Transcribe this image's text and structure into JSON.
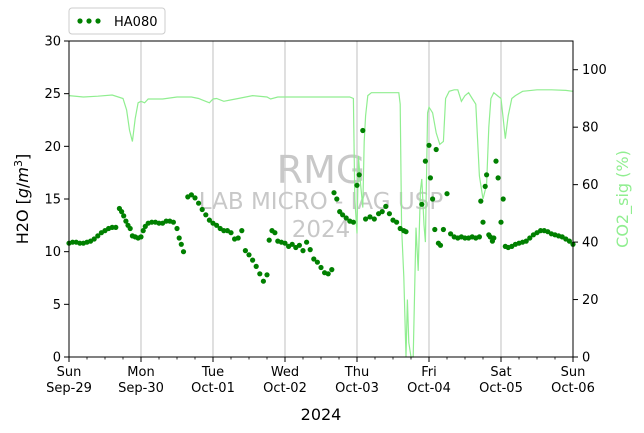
{
  "chart_data": {
    "type": "scatter",
    "xlabel": "2024",
    "ylabel_left": "H2O [g/m³]",
    "ylabel_right": "CO2_sig (%)",
    "ylim_left": [
      0,
      30
    ],
    "ylim_right": [
      0,
      110
    ],
    "yticks_left": [
      "0",
      "5",
      "10",
      "15",
      "20",
      "25",
      "30"
    ],
    "yticks_right": [
      "0",
      "20",
      "40",
      "60",
      "80",
      "100"
    ],
    "xlim_days": [
      0,
      7
    ],
    "x_ticks": [
      {
        "day": 0,
        "weekday": "Sun",
        "date": "Sep-29"
      },
      {
        "day": 1,
        "weekday": "Mon",
        "date": "Sep-30"
      },
      {
        "day": 2,
        "weekday": "Tue",
        "date": "Oct-01"
      },
      {
        "day": 3,
        "weekday": "Wed",
        "date": "Oct-02"
      },
      {
        "day": 4,
        "weekday": "Thu",
        "date": "Oct-03"
      },
      {
        "day": 5,
        "weekday": "Fri",
        "date": "Oct-04"
      },
      {
        "day": 6,
        "weekday": "Sat",
        "date": "Oct-05"
      },
      {
        "day": 7,
        "weekday": "Sun",
        "date": "Oct-06"
      }
    ],
    "grid": "vertical",
    "legend_position": "top-left",
    "watermark": [
      "RMG",
      "LAB MICRO - IAG USP",
      "2024"
    ],
    "series": [
      {
        "name": "HA080",
        "axis": "left",
        "style": "points",
        "color": "#008000",
        "points": [
          [
            0.0,
            10.8
          ],
          [
            0.05,
            10.9
          ],
          [
            0.1,
            10.9
          ],
          [
            0.15,
            10.8
          ],
          [
            0.2,
            10.8
          ],
          [
            0.25,
            10.9
          ],
          [
            0.3,
            11.0
          ],
          [
            0.35,
            11.2
          ],
          [
            0.4,
            11.5
          ],
          [
            0.45,
            11.8
          ],
          [
            0.5,
            12.0
          ],
          [
            0.55,
            12.2
          ],
          [
            0.6,
            12.3
          ],
          [
            0.65,
            12.3
          ],
          [
            0.7,
            14.1
          ],
          [
            0.73,
            13.8
          ],
          [
            0.76,
            13.4
          ],
          [
            0.79,
            12.9
          ],
          [
            0.82,
            12.5
          ],
          [
            0.85,
            12.2
          ],
          [
            0.88,
            11.5
          ],
          [
            0.92,
            11.4
          ],
          [
            0.96,
            11.3
          ],
          [
            1.0,
            11.4
          ],
          [
            1.03,
            12.0
          ],
          [
            1.06,
            12.4
          ],
          [
            1.1,
            12.7
          ],
          [
            1.15,
            12.8
          ],
          [
            1.2,
            12.8
          ],
          [
            1.25,
            12.7
          ],
          [
            1.3,
            12.7
          ],
          [
            1.35,
            12.9
          ],
          [
            1.4,
            12.9
          ],
          [
            1.45,
            12.8
          ],
          [
            1.5,
            12.2
          ],
          [
            1.53,
            11.3
          ],
          [
            1.56,
            10.7
          ],
          [
            1.59,
            10.0
          ],
          [
            1.65,
            15.2
          ],
          [
            1.7,
            15.4
          ],
          [
            1.75,
            15.1
          ],
          [
            1.8,
            14.6
          ],
          [
            1.85,
            14.0
          ],
          [
            1.9,
            13.5
          ],
          [
            1.95,
            13.0
          ],
          [
            2.0,
            12.7
          ],
          [
            2.05,
            12.5
          ],
          [
            2.1,
            12.2
          ],
          [
            2.15,
            12.0
          ],
          [
            2.2,
            12.0
          ],
          [
            2.25,
            11.8
          ],
          [
            2.3,
            11.2
          ],
          [
            2.35,
            11.3
          ],
          [
            2.4,
            12.0
          ],
          [
            2.45,
            10.1
          ],
          [
            2.5,
            9.7
          ],
          [
            2.55,
            9.2
          ],
          [
            2.6,
            8.6
          ],
          [
            2.65,
            7.9
          ],
          [
            2.7,
            7.2
          ],
          [
            2.75,
            7.8
          ],
          [
            2.78,
            11.1
          ],
          [
            2.82,
            12.0
          ],
          [
            2.86,
            11.8
          ],
          [
            2.9,
            11.0
          ],
          [
            2.95,
            10.9
          ],
          [
            3.0,
            10.8
          ],
          [
            3.05,
            10.5
          ],
          [
            3.1,
            10.7
          ],
          [
            3.15,
            10.4
          ],
          [
            3.2,
            10.6
          ],
          [
            3.25,
            10.1
          ],
          [
            3.3,
            10.9
          ],
          [
            3.35,
            10.2
          ],
          [
            3.4,
            9.3
          ],
          [
            3.45,
            9.0
          ],
          [
            3.5,
            8.5
          ],
          [
            3.55,
            8.0
          ],
          [
            3.6,
            7.9
          ],
          [
            3.65,
            8.3
          ],
          [
            3.68,
            15.6
          ],
          [
            3.72,
            15.0
          ],
          [
            3.76,
            13.8
          ],
          [
            3.8,
            13.5
          ],
          [
            3.85,
            13.2
          ],
          [
            3.9,
            12.9
          ],
          [
            3.95,
            12.8
          ],
          [
            4.0,
            16.3
          ],
          [
            4.03,
            17.3
          ],
          [
            4.08,
            21.5
          ],
          [
            4.12,
            13.1
          ],
          [
            4.18,
            13.3
          ],
          [
            4.24,
            13.1
          ],
          [
            4.3,
            13.6
          ],
          [
            4.35,
            13.8
          ],
          [
            4.4,
            14.3
          ],
          [
            4.45,
            13.6
          ],
          [
            4.5,
            13.0
          ],
          [
            4.55,
            12.8
          ],
          [
            4.6,
            12.2
          ],
          [
            4.65,
            12.0
          ],
          [
            4.68,
            11.9
          ],
          [
            4.9,
            14.5
          ],
          [
            4.95,
            18.6
          ],
          [
            5.0,
            20.1
          ],
          [
            5.02,
            17.0
          ],
          [
            5.05,
            15.0
          ],
          [
            5.08,
            12.1
          ],
          [
            5.1,
            19.7
          ],
          [
            5.13,
            10.8
          ],
          [
            5.16,
            10.6
          ],
          [
            5.2,
            12.1
          ],
          [
            5.25,
            15.5
          ],
          [
            5.3,
            11.7
          ],
          [
            5.35,
            11.4
          ],
          [
            5.4,
            11.3
          ],
          [
            5.45,
            11.4
          ],
          [
            5.5,
            11.3
          ],
          [
            5.55,
            11.3
          ],
          [
            5.6,
            11.4
          ],
          [
            5.65,
            11.3
          ],
          [
            5.7,
            11.4
          ],
          [
            5.72,
            14.8
          ],
          [
            5.75,
            12.8
          ],
          [
            5.78,
            16.2
          ],
          [
            5.8,
            17.3
          ],
          [
            5.83,
            11.6
          ],
          [
            5.85,
            11.4
          ],
          [
            5.88,
            11.0
          ],
          [
            5.9,
            11.3
          ],
          [
            5.93,
            18.6
          ],
          [
            5.96,
            17.0
          ],
          [
            6.0,
            12.8
          ],
          [
            6.03,
            15.0
          ],
          [
            6.06,
            10.5
          ],
          [
            6.1,
            10.4
          ],
          [
            6.15,
            10.5
          ],
          [
            6.2,
            10.7
          ],
          [
            6.25,
            10.8
          ],
          [
            6.3,
            10.9
          ],
          [
            6.35,
            11.0
          ],
          [
            6.4,
            11.3
          ],
          [
            6.45,
            11.6
          ],
          [
            6.5,
            11.8
          ],
          [
            6.55,
            12.0
          ],
          [
            6.6,
            12.0
          ],
          [
            6.65,
            11.9
          ],
          [
            6.7,
            11.7
          ],
          [
            6.75,
            11.6
          ],
          [
            6.8,
            11.5
          ],
          [
            6.85,
            11.4
          ],
          [
            6.9,
            11.2
          ],
          [
            6.95,
            11.0
          ],
          [
            7.0,
            10.7
          ]
        ]
      },
      {
        "name": "",
        "axis": "right",
        "style": "line",
        "color": "#90ee90",
        "points": [
          [
            0.0,
            91.0
          ],
          [
            0.2,
            90.5
          ],
          [
            0.4,
            90.8
          ],
          [
            0.6,
            91.2
          ],
          [
            0.75,
            90.0
          ],
          [
            0.8,
            86.0
          ],
          [
            0.84,
            79.0
          ],
          [
            0.88,
            75.0
          ],
          [
            0.92,
            83.0
          ],
          [
            0.96,
            88.5
          ],
          [
            1.0,
            89.0
          ],
          [
            1.05,
            88.5
          ],
          [
            1.1,
            89.8
          ],
          [
            1.3,
            89.8
          ],
          [
            1.5,
            90.5
          ],
          [
            1.7,
            90.5
          ],
          [
            1.8,
            90.0
          ],
          [
            1.85,
            89.5
          ],
          [
            1.95,
            88.5
          ],
          [
            2.0,
            89.8
          ],
          [
            2.05,
            90.0
          ],
          [
            2.15,
            89.0
          ],
          [
            2.25,
            89.5
          ],
          [
            2.35,
            90.0
          ],
          [
            2.55,
            91.0
          ],
          [
            2.75,
            90.5
          ],
          [
            2.8,
            89.8
          ],
          [
            2.9,
            90.5
          ],
          [
            3.1,
            90.5
          ],
          [
            3.3,
            90.5
          ],
          [
            3.5,
            90.5
          ],
          [
            3.7,
            90.5
          ],
          [
            3.9,
            90.5
          ],
          [
            3.95,
            90.0
          ],
          [
            3.97,
            55.0
          ],
          [
            4.0,
            43.0
          ],
          [
            4.02,
            70.0
          ],
          [
            4.05,
            60.0
          ],
          [
            4.08,
            52.0
          ],
          [
            4.1,
            75.0
          ],
          [
            4.12,
            84.0
          ],
          [
            4.15,
            91.0
          ],
          [
            4.2,
            92.0
          ],
          [
            4.3,
            92.0
          ],
          [
            4.4,
            92.0
          ],
          [
            4.5,
            92.0
          ],
          [
            4.58,
            92.0
          ],
          [
            4.6,
            88.0
          ],
          [
            4.62,
            45.0
          ],
          [
            4.65,
            28.0
          ],
          [
            4.68,
            0.0
          ],
          [
            4.7,
            20.0
          ],
          [
            4.72,
            5.0
          ],
          [
            4.75,
            0.0
          ],
          [
            4.78,
            0.0
          ],
          [
            4.82,
            45.0
          ],
          [
            4.85,
            30.0
          ],
          [
            4.88,
            58.0
          ],
          [
            4.9,
            62.0
          ],
          [
            4.93,
            46.0
          ],
          [
            4.95,
            40.0
          ],
          [
            4.98,
            85.0
          ],
          [
            5.0,
            87.0
          ],
          [
            5.05,
            85.0
          ],
          [
            5.1,
            78.0
          ],
          [
            5.15,
            74.0
          ],
          [
            5.2,
            75.0
          ],
          [
            5.23,
            90.0
          ],
          [
            5.28,
            92.5
          ],
          [
            5.35,
            93.0
          ],
          [
            5.4,
            93.0
          ],
          [
            5.45,
            89.0
          ],
          [
            5.5,
            91.0
          ],
          [
            5.55,
            92.0
          ],
          [
            5.6,
            90.0
          ],
          [
            5.65,
            88.0
          ],
          [
            5.7,
            63.0
          ],
          [
            5.75,
            55.0
          ],
          [
            5.8,
            60.0
          ],
          [
            5.83,
            80.0
          ],
          [
            5.86,
            90.0
          ],
          [
            5.9,
            92.0
          ],
          [
            5.95,
            91.0
          ],
          [
            6.0,
            90.0
          ],
          [
            6.03,
            83.0
          ],
          [
            6.06,
            76.0
          ],
          [
            6.1,
            84.0
          ],
          [
            6.15,
            90.0
          ],
          [
            6.2,
            91.0
          ],
          [
            6.3,
            92.5
          ],
          [
            6.5,
            93.0
          ],
          [
            6.7,
            93.0
          ],
          [
            6.9,
            92.8
          ],
          [
            7.0,
            92.5
          ]
        ]
      }
    ]
  }
}
